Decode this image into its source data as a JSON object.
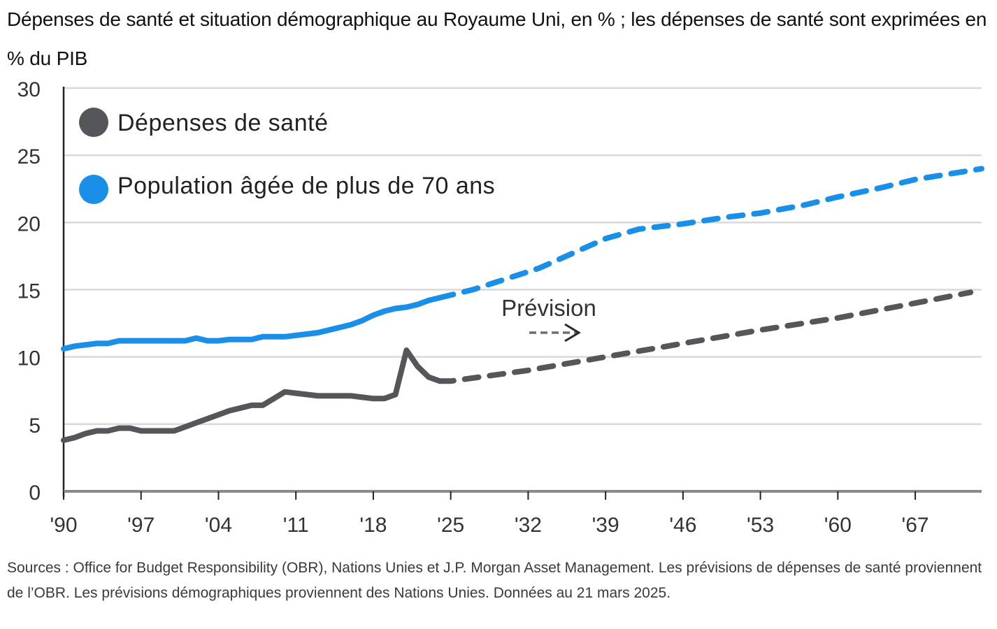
{
  "header": {
    "title": "Dépenses de santé et situation démographique au Royaume Uni, en % ; les dépenses de santé sont exprimées en % du PIB"
  },
  "footer": {
    "source": "Sources : Office for Budget Responsibility (OBR), Nations Unies et J.P. Morgan Asset Management. Les prévisions de dépenses de santé proviennent de l’OBR. Les prévisions démographiques proviennent des Nations Unies. Données au 21 mars 2025."
  },
  "chart_data": {
    "type": "line",
    "title": "Dépenses de santé et situation démographique au Royaume Uni, en % ; les dépenses de santé sont exprimées en % du PIB",
    "xlabel": "",
    "ylabel": "",
    "xlim": [
      1990,
      2073
    ],
    "ylim": [
      0,
      30
    ],
    "grid": true,
    "legend_position": "top-left",
    "x_ticks": [
      1990,
      1997,
      2004,
      2011,
      2018,
      2025,
      2032,
      2039,
      2046,
      2053,
      2060,
      2067
    ],
    "x_tick_labels": [
      "'90",
      "'97",
      "'04",
      "'11",
      "'18",
      "'25",
      "'32",
      "'39",
      "'46",
      "'53",
      "'60",
      "'67"
    ],
    "y_ticks": [
      0,
      5,
      10,
      15,
      20,
      25,
      30
    ],
    "y_tick_labels": [
      "0",
      "5",
      "10",
      "15",
      "20",
      "25",
      "30"
    ],
    "forecast_start": 2024,
    "annotation": {
      "text": "Prévision",
      "x": 2033.5,
      "y": 13.9,
      "arrow": "dashed-right"
    },
    "series": [
      {
        "name": "Dépenses de santé",
        "color": "#555659",
        "historical": {
          "x": [
            1990,
            1991,
            1992,
            1993,
            1994,
            1995,
            1996,
            1997,
            1998,
            1999,
            2000,
            2001,
            2002,
            2003,
            2004,
            2005,
            2006,
            2007,
            2008,
            2009,
            2010,
            2011,
            2012,
            2013,
            2014,
            2015,
            2016,
            2017,
            2018,
            2019,
            2020,
            2021,
            2022,
            2023,
            2024
          ],
          "y": [
            3.8,
            4.0,
            4.3,
            4.5,
            4.5,
            4.7,
            4.7,
            4.5,
            4.5,
            4.5,
            4.5,
            4.8,
            5.1,
            5.4,
            5.7,
            6.0,
            6.2,
            6.4,
            6.4,
            6.9,
            7.4,
            7.3,
            7.2,
            7.1,
            7.1,
            7.1,
            7.1,
            7.0,
            6.9,
            6.9,
            7.2,
            10.5,
            9.3,
            8.5,
            8.2
          ]
        },
        "forecast": {
          "x": [
            2024,
            2025,
            2032,
            2039,
            2046,
            2053,
            2060,
            2067,
            2072
          ],
          "y": [
            8.2,
            8.2,
            9.0,
            10.0,
            11.0,
            12.0,
            12.9,
            14.0,
            14.8
          ]
        }
      },
      {
        "name": "Population âgée de plus de 70 ans",
        "color": "#1a8fe8",
        "historical": {
          "x": [
            1990,
            1991,
            1992,
            1993,
            1994,
            1995,
            1996,
            1997,
            1998,
            1999,
            2000,
            2001,
            2002,
            2003,
            2004,
            2005,
            2006,
            2007,
            2008,
            2009,
            2010,
            2011,
            2012,
            2013,
            2014,
            2015,
            2016,
            2017,
            2018,
            2019,
            2020,
            2021,
            2022,
            2023,
            2024
          ],
          "y": [
            10.6,
            10.8,
            10.9,
            11.0,
            11.0,
            11.2,
            11.2,
            11.2,
            11.2,
            11.2,
            11.2,
            11.2,
            11.4,
            11.2,
            11.2,
            11.3,
            11.3,
            11.3,
            11.5,
            11.5,
            11.5,
            11.6,
            11.7,
            11.8,
            12.0,
            12.2,
            12.4,
            12.7,
            13.1,
            13.4,
            13.6,
            13.7,
            13.9,
            14.2,
            14.4
          ]
        },
        "forecast": {
          "x": [
            2024,
            2027,
            2030,
            2033,
            2036,
            2039,
            2042,
            2046,
            2050,
            2053,
            2057,
            2060,
            2064,
            2067,
            2070,
            2073
          ],
          "y": [
            14.4,
            15.0,
            15.8,
            16.6,
            17.7,
            18.8,
            19.5,
            19.9,
            20.4,
            20.7,
            21.3,
            21.9,
            22.6,
            23.2,
            23.6,
            24.0
          ]
        }
      }
    ]
  }
}
